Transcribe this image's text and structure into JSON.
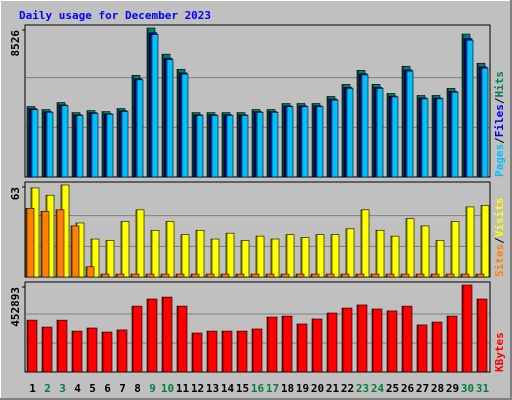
{
  "chart_data": [
    {
      "type": "bar",
      "title": "Daily usage for December 2023",
      "title_color": "#0000ff",
      "ylim": [
        0,
        8526
      ],
      "yticks": [
        8526
      ],
      "legend_separator": "/",
      "series": [
        {
          "name": "Hits",
          "color": "#00805c",
          "values": [
            4033,
            3860,
            4263,
            3687,
            3802,
            3744,
            3917,
            5818,
            8526,
            7028,
            6164,
            3687,
            3687,
            3687,
            3687,
            3860,
            3860,
            4205,
            4205,
            4205,
            4609,
            5300,
            6106,
            5300,
            4781,
            6337,
            4666,
            4666,
            5069,
            8180,
            6510
          ]
        },
        {
          "name": "Files",
          "color": "#0000ff",
          "values": [
            3900,
            3740,
            4120,
            3560,
            3680,
            3620,
            3790,
            5620,
            8250,
            6800,
            5960,
            3560,
            3560,
            3560,
            3560,
            3740,
            3740,
            4070,
            4070,
            4070,
            4460,
            5130,
            5910,
            5130,
            4630,
            6130,
            4520,
            4520,
            4900,
            7920,
            6300
          ]
        },
        {
          "name": "Pages",
          "color": "#00c0ff",
          "values": [
            3850,
            3700,
            4080,
            3520,
            3640,
            3590,
            3750,
            5560,
            8150,
            6720,
            5890,
            3520,
            3520,
            3520,
            3520,
            3700,
            3700,
            4020,
            4020,
            4020,
            4400,
            5070,
            5840,
            5070,
            4580,
            6060,
            4470,
            4470,
            4850,
            7830,
            6230
          ]
        }
      ]
    },
    {
      "type": "bar",
      "ylim": [
        0,
        63
      ],
      "yticks": [
        63
      ],
      "legend_separator": "/",
      "series": [
        {
          "name": "Visits",
          "color": "#ffff00",
          "values": [
            61,
            56,
            63,
            37,
            26,
            25,
            38,
            46,
            32,
            38,
            29,
            32,
            26,
            30,
            25,
            28,
            26,
            29,
            27,
            29,
            29,
            33,
            46,
            32,
            28,
            40,
            35,
            25,
            38,
            48,
            49
          ]
        },
        {
          "name": "Sites",
          "color": "#ff8000",
          "values": [
            47,
            45,
            46,
            35,
            7,
            2,
            2,
            2,
            2,
            2,
            2,
            2,
            2,
            2,
            2,
            2,
            2,
            2,
            2,
            2,
            2,
            2,
            2,
            2,
            2,
            2,
            2,
            2,
            2,
            2,
            2
          ]
        }
      ]
    },
    {
      "type": "bar",
      "ylim": [
        0,
        452893
      ],
      "yticks": [
        452893
      ],
      "categories": [
        "1",
        "2",
        "3",
        "4",
        "5",
        "6",
        "7",
        "8",
        "9",
        "10",
        "11",
        "12",
        "13",
        "14",
        "15",
        "16",
        "17",
        "18",
        "19",
        "20",
        "21",
        "22",
        "23",
        "24",
        "25",
        "26",
        "27",
        "28",
        "29",
        "30",
        "31"
      ],
      "category_colors": [
        "#000000",
        "#008040",
        "#008040",
        "#000000",
        "#000000",
        "#000000",
        "#000000",
        "#000000",
        "#008040",
        "#008040",
        "#000000",
        "#000000",
        "#000000",
        "#000000",
        "#000000",
        "#008040",
        "#008040",
        "#000000",
        "#000000",
        "#000000",
        "#000000",
        "#000000",
        "#008040",
        "#008040",
        "#000000",
        "#000000",
        "#000000",
        "#000000",
        "#000000",
        "#008040",
        "#008040"
      ],
      "series": [
        {
          "name": "KBytes",
          "color": "#ff0000",
          "values": [
            270000,
            234000,
            270000,
            213000,
            229000,
            208000,
            219000,
            343000,
            380000,
            390000,
            343000,
            203000,
            213000,
            213000,
            213000,
            224000,
            286000,
            291000,
            250000,
            276000,
            307000,
            333000,
            349000,
            328000,
            318000,
            343000,
            245000,
            260000,
            291000,
            452893,
            380000
          ]
        }
      ]
    }
  ]
}
